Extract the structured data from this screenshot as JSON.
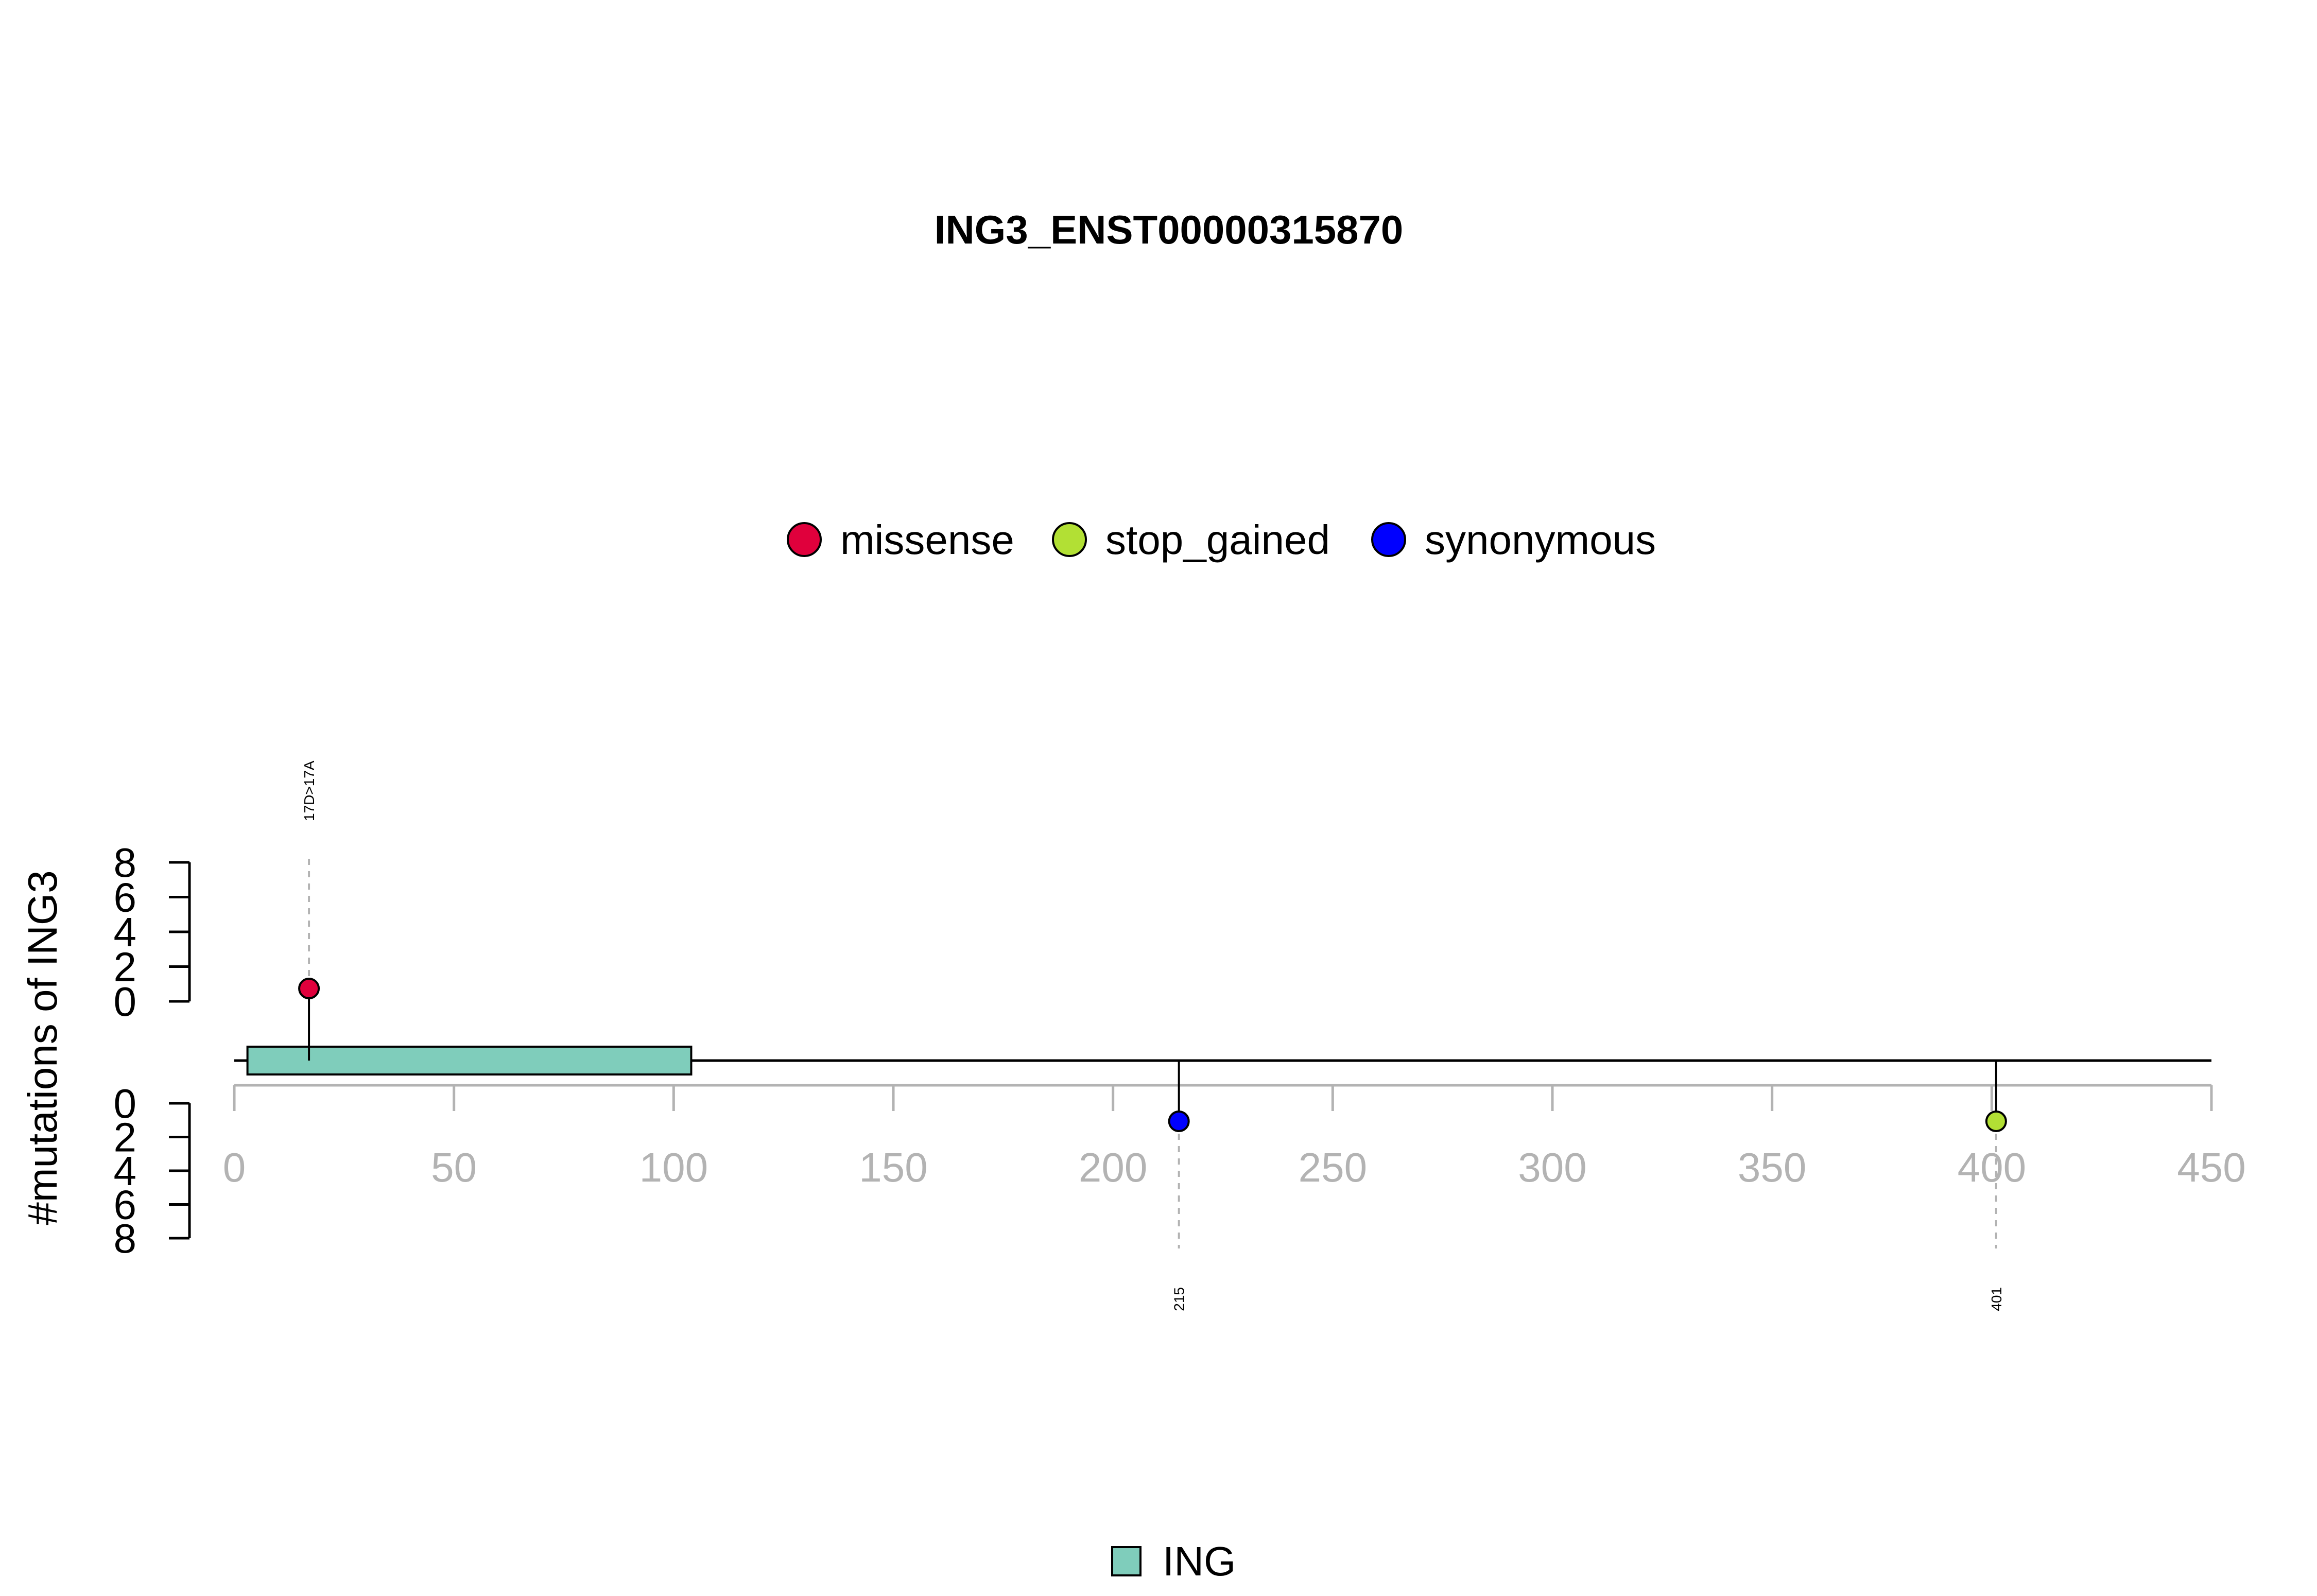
{
  "chart_data": {
    "type": "scatter",
    "title": "ING3_ENST00000315870",
    "ylabel": "#mutations of ING3",
    "xlim": [
      0,
      450
    ],
    "x_ticks": [
      0,
      50,
      100,
      150,
      200,
      250,
      300,
      350,
      400,
      450
    ],
    "y_ticks_upper": [
      0,
      2,
      4,
      6,
      8
    ],
    "y_ticks_lower": [
      0,
      2,
      4,
      6,
      8
    ],
    "protein_length": 450,
    "legend_top": [
      {
        "name": "missense",
        "color": "#E0003C"
      },
      {
        "name": "stop_gained",
        "color": "#B2E034"
      },
      {
        "name": "synonymous",
        "color": "#0000FF"
      }
    ],
    "domains": [
      {
        "name": "ING",
        "start": 3,
        "end": 104,
        "color": "#7FCDBB"
      }
    ],
    "mutations": [
      {
        "position": 17,
        "count": 1,
        "type": "missense",
        "side": "up",
        "label": "17D>17A",
        "color": "#E0003C"
      },
      {
        "position": 215,
        "count": 1,
        "type": "synonymous",
        "side": "down",
        "label": "215",
        "color": "#0000FF"
      },
      {
        "position": 401,
        "count": 1,
        "type": "stop_gained",
        "side": "down",
        "label": "401",
        "color": "#B2E034"
      }
    ]
  }
}
